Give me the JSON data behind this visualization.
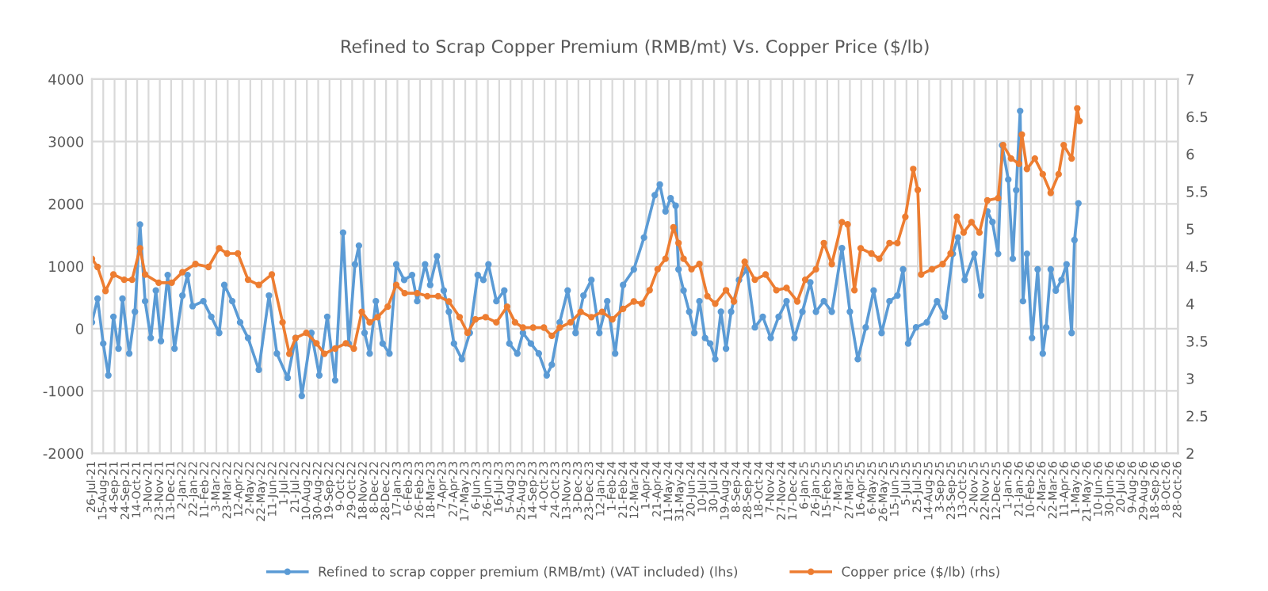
{
  "chart_data": {
    "type": "line",
    "title": "Refined to Scrap Copper Premium (RMB/mt) Vs. Copper Price ($/lb)",
    "series": [
      {
        "name": "Refined to scrap copper premium (RMB/mt) (VAT included) (lhs)",
        "color": "#5b9bd5",
        "axis": "y",
        "x": [
          "2021-07-26",
          "2021-08-05",
          "2021-08-15",
          "2021-08-24",
          "2021-09-02",
          "2021-09-11",
          "2021-09-18",
          "2021-09-30",
          "2021-10-10",
          "2021-10-19",
          "2021-10-28",
          "2021-11-07",
          "2021-11-16",
          "2021-11-25",
          "2021-12-07",
          "2021-12-19",
          "2022-01-02",
          "2022-01-11",
          "2022-01-20",
          "2022-02-08",
          "2022-02-22",
          "2022-03-08",
          "2022-03-17",
          "2022-03-31",
          "2022-04-14",
          "2022-04-28",
          "2022-05-17",
          "2022-06-04",
          "2022-06-18",
          "2022-07-07",
          "2022-07-21",
          "2022-08-01",
          "2022-08-18",
          "2022-09-01",
          "2022-09-15",
          "2022-09-29",
          "2022-10-13",
          "2022-10-23",
          "2022-11-03",
          "2022-11-10",
          "2022-11-20",
          "2022-11-29",
          "2022-12-10",
          "2022-12-22",
          "2023-01-03",
          "2023-01-15",
          "2023-01-29",
          "2023-02-12",
          "2023-02-21",
          "2023-03-07",
          "2023-03-16",
          "2023-03-28",
          "2023-04-09",
          "2023-04-18",
          "2023-04-27",
          "2023-05-11",
          "2023-05-25",
          "2023-06-08",
          "2023-06-18",
          "2023-06-27",
          "2023-07-11",
          "2023-07-25",
          "2023-08-03",
          "2023-08-17",
          "2023-08-27",
          "2023-09-10",
          "2023-09-24",
          "2023-10-08",
          "2023-10-17",
          "2023-10-31",
          "2023-11-14",
          "2023-11-28",
          "2023-12-12",
          "2023-12-26",
          "2024-01-09",
          "2024-01-23",
          "2024-02-06",
          "2024-02-20",
          "2024-03-10",
          "2024-03-28",
          "2024-04-16",
          "2024-04-25",
          "2024-05-05",
          "2024-05-14",
          "2024-05-23",
          "2024-05-28",
          "2024-06-06",
          "2024-06-16",
          "2024-06-25",
          "2024-07-04",
          "2024-07-14",
          "2024-07-23",
          "2024-08-01",
          "2024-08-11",
          "2024-08-20",
          "2024-08-29",
          "2024-09-12",
          "2024-09-26",
          "2024-10-10",
          "2024-10-24",
          "2024-11-07",
          "2024-11-21",
          "2024-12-05",
          "2024-12-19",
          "2025-01-02",
          "2025-01-16",
          "2025-01-26",
          "2025-02-09",
          "2025-02-23",
          "2025-03-13",
          "2025-03-27",
          "2025-04-10",
          "2025-04-24",
          "2025-05-08",
          "2025-05-22",
          "2025-06-05",
          "2025-06-19",
          "2025-06-29",
          "2025-07-08",
          "2025-07-22",
          "2025-08-10",
          "2025-08-28",
          "2025-09-11",
          "2025-09-25",
          "2025-10-04",
          "2025-10-16",
          "2025-11-02",
          "2025-11-14",
          "2025-11-25",
          "2025-12-04",
          "2025-12-14",
          "2025-12-21",
          "2026-01-01",
          "2026-01-09",
          "2026-01-15",
          "2026-01-22",
          "2026-01-27",
          "2026-02-03",
          "2026-02-12",
          "2026-02-22",
          "2026-03-03",
          "2026-03-09",
          "2026-03-17",
          "2026-03-26",
          "2026-04-05",
          "2026-04-14",
          "2026-04-23",
          "2026-04-28",
          "2026-05-05"
        ],
        "values": [
          100,
          480,
          -240,
          -750,
          190,
          -320,
          480,
          -400,
          270,
          1670,
          440,
          -150,
          610,
          -200,
          860,
          -320,
          530,
          860,
          360,
          440,
          190,
          -70,
          700,
          440,
          100,
          -150,
          -660,
          530,
          -400,
          -790,
          -150,
          -1080,
          -70,
          -750,
          190,
          -830,
          1540,
          -240,
          1030,
          1330,
          -70,
          -400,
          440,
          -240,
          -400,
          1030,
          780,
          860,
          440,
          1030,
          700,
          1160,
          610,
          270,
          -240,
          -490,
          -70,
          860,
          780,
          1030,
          440,
          610,
          -240,
          -400,
          -70,
          -240,
          -400,
          -750,
          -580,
          100,
          610,
          -70,
          530,
          780,
          -70,
          440,
          -400,
          700,
          950,
          1460,
          2140,
          2310,
          1880,
          2090,
          1970,
          950,
          610,
          270,
          -70,
          440,
          -150,
          -240,
          -490,
          270,
          -320,
          270,
          780,
          950,
          20,
          190,
          -150,
          190,
          440,
          -150,
          270,
          740,
          270,
          440,
          270,
          1290,
          270,
          -490,
          20,
          610,
          -70,
          440,
          530,
          950,
          -240,
          20,
          100,
          440,
          190,
          1200,
          1460,
          780,
          1200,
          530,
          1880,
          1710,
          1200,
          2940,
          2390,
          1120,
          2220,
          3490,
          440,
          1200,
          -150,
          950,
          -400,
          20,
          950,
          610,
          780,
          1030,
          -70,
          1420,
          2010
        ]
      },
      {
        "name": "Copper price ($/lb) (rhs)",
        "color": "#ed7d31",
        "axis": "y2",
        "x": [
          "2021-07-26",
          "2021-08-05",
          "2021-08-19",
          "2021-09-02",
          "2021-09-21",
          "2021-10-05",
          "2021-10-19",
          "2021-10-28",
          "2021-11-21",
          "2021-12-14",
          "2022-01-02",
          "2022-01-25",
          "2022-02-17",
          "2022-03-08",
          "2022-03-22",
          "2022-04-10",
          "2022-04-28",
          "2022-05-17",
          "2022-06-09",
          "2022-06-28",
          "2022-07-10",
          "2022-07-21",
          "2022-08-09",
          "2022-08-27",
          "2022-09-10",
          "2022-09-29",
          "2022-10-18",
          "2022-11-01",
          "2022-11-15",
          "2022-11-29",
          "2022-12-13",
          "2022-12-31",
          "2023-01-15",
          "2023-01-30",
          "2023-02-21",
          "2023-03-11",
          "2023-03-30",
          "2023-04-18",
          "2023-05-07",
          "2023-05-21",
          "2023-06-04",
          "2023-06-22",
          "2023-07-11",
          "2023-07-30",
          "2023-08-13",
          "2023-08-27",
          "2023-09-14",
          "2023-10-03",
          "2023-10-17",
          "2023-10-31",
          "2023-11-19",
          "2023-12-07",
          "2023-12-26",
          "2024-01-14",
          "2024-02-01",
          "2024-02-20",
          "2024-03-10",
          "2024-03-24",
          "2024-04-07",
          "2024-04-21",
          "2024-05-05",
          "2024-05-19",
          "2024-05-28",
          "2024-06-06",
          "2024-06-20",
          "2024-07-04",
          "2024-07-18",
          "2024-08-01",
          "2024-08-20",
          "2024-09-03",
          "2024-09-22",
          "2024-10-10",
          "2024-10-29",
          "2024-11-17",
          "2024-12-05",
          "2024-12-24",
          "2025-01-07",
          "2025-01-26",
          "2025-02-09",
          "2025-02-23",
          "2025-03-13",
          "2025-03-23",
          "2025-04-04",
          "2025-04-15",
          "2025-05-04",
          "2025-05-18",
          "2025-06-05",
          "2025-06-19",
          "2025-07-03",
          "2025-07-17",
          "2025-07-25",
          "2025-07-31",
          "2025-08-19",
          "2025-09-07",
          "2025-09-21",
          "2025-10-02",
          "2025-10-14",
          "2025-10-28",
          "2025-11-11",
          "2025-11-25",
          "2025-12-14",
          "2025-12-23",
          "2026-01-06",
          "2026-01-20",
          "2026-01-25",
          "2026-02-03",
          "2026-02-17",
          "2026-03-03",
          "2026-03-17",
          "2026-03-31",
          "2026-04-09",
          "2026-04-23",
          "2026-05-03",
          "2026-05-07"
        ],
        "values": [
          4.6,
          4.49,
          4.17,
          4.39,
          4.32,
          4.32,
          4.74,
          4.39,
          4.28,
          4.28,
          4.42,
          4.53,
          4.49,
          4.74,
          4.67,
          4.67,
          4.32,
          4.25,
          4.39,
          3.75,
          3.33,
          3.54,
          3.61,
          3.47,
          3.33,
          3.4,
          3.47,
          3.4,
          3.89,
          3.75,
          3.82,
          3.96,
          4.25,
          4.14,
          4.14,
          4.1,
          4.1,
          4.03,
          3.82,
          3.61,
          3.79,
          3.82,
          3.75,
          3.96,
          3.75,
          3.68,
          3.68,
          3.68,
          3.57,
          3.68,
          3.75,
          3.89,
          3.82,
          3.89,
          3.79,
          3.93,
          4.03,
          4.0,
          4.18,
          4.46,
          4.6,
          5.02,
          4.81,
          4.6,
          4.46,
          4.53,
          4.1,
          4.0,
          4.18,
          4.03,
          4.56,
          4.32,
          4.39,
          4.18,
          4.21,
          4.03,
          4.32,
          4.46,
          4.81,
          4.53,
          5.09,
          5.06,
          4.18,
          4.74,
          4.67,
          4.6,
          4.81,
          4.81,
          5.16,
          5.8,
          5.52,
          4.39,
          4.46,
          4.53,
          4.67,
          5.16,
          4.95,
          5.09,
          4.95,
          5.38,
          5.41,
          6.12,
          5.94,
          5.87,
          6.26,
          5.8,
          5.94,
          5.73,
          5.48,
          5.73,
          6.12,
          5.94,
          6.61,
          6.44
        ]
      }
    ],
    "xlim": [
      "2021-07-26",
      "2026-10-28"
    ],
    "xticks": [
      {
        "value": "2021-07-26",
        "label": "26-Jul-21"
      },
      {
        "value": "2021-08-15",
        "label": "15-Aug-21"
      },
      {
        "value": "2021-09-04",
        "label": "4-Sep-21"
      },
      {
        "value": "2021-09-24",
        "label": "24-Sep-21"
      },
      {
        "value": "2021-10-14",
        "label": "14-Oct-21"
      },
      {
        "value": "2021-11-03",
        "label": "3-Nov-21"
      },
      {
        "value": "2021-11-23",
        "label": "23-Nov-21"
      },
      {
        "value": "2021-12-13",
        "label": "13-Dec-21"
      },
      {
        "value": "2022-01-02",
        "label": "2-Jan-22"
      },
      {
        "value": "2022-01-22",
        "label": "22-Jan-22"
      },
      {
        "value": "2022-02-11",
        "label": "11-Feb-22"
      },
      {
        "value": "2022-03-03",
        "label": "3-Mar-22"
      },
      {
        "value": "2022-03-23",
        "label": "23-Mar-22"
      },
      {
        "value": "2022-04-12",
        "label": "12-Apr-22"
      },
      {
        "value": "2022-05-02",
        "label": "2-May-22"
      },
      {
        "value": "2022-05-22",
        "label": "22-May-22"
      },
      {
        "value": "2022-06-11",
        "label": "11-Jun-22"
      },
      {
        "value": "2022-07-01",
        "label": "1-Jul-22"
      },
      {
        "value": "2022-07-21",
        "label": "21-Jul-22"
      },
      {
        "value": "2022-08-10",
        "label": "10-Aug-22"
      },
      {
        "value": "2022-08-30",
        "label": "30-Aug-22"
      },
      {
        "value": "2022-09-19",
        "label": "19-Sep-22"
      },
      {
        "value": "2022-10-09",
        "label": "9-Oct-22"
      },
      {
        "value": "2022-10-29",
        "label": "29-Oct-22"
      },
      {
        "value": "2022-11-18",
        "label": "18-Nov-22"
      },
      {
        "value": "2022-12-08",
        "label": "8-Dec-22"
      },
      {
        "value": "2022-12-28",
        "label": "28-Dec-22"
      },
      {
        "value": "2023-01-17",
        "label": "17-Jan-23"
      },
      {
        "value": "2023-02-06",
        "label": "6-Feb-23"
      },
      {
        "value": "2023-02-26",
        "label": "26-Feb-23"
      },
      {
        "value": "2023-03-18",
        "label": "18-Mar-23"
      },
      {
        "value": "2023-04-07",
        "label": "7-Apr-23"
      },
      {
        "value": "2023-04-27",
        "label": "27-Apr-23"
      },
      {
        "value": "2023-05-17",
        "label": "17-May-23"
      },
      {
        "value": "2023-06-06",
        "label": "6-Jun-23"
      },
      {
        "value": "2023-06-26",
        "label": "26-Jun-23"
      },
      {
        "value": "2023-07-16",
        "label": "16-Jul-23"
      },
      {
        "value": "2023-08-05",
        "label": "5-Aug-23"
      },
      {
        "value": "2023-08-25",
        "label": "25-Aug-23"
      },
      {
        "value": "2023-09-14",
        "label": "14-Sep-23"
      },
      {
        "value": "2023-10-04",
        "label": "4-Oct-23"
      },
      {
        "value": "2023-10-24",
        "label": "24-Oct-23"
      },
      {
        "value": "2023-11-13",
        "label": "13-Nov-23"
      },
      {
        "value": "2023-12-03",
        "label": "3-Dec-23"
      },
      {
        "value": "2023-12-23",
        "label": "23-Dec-23"
      },
      {
        "value": "2024-01-12",
        "label": "12-Jan-24"
      },
      {
        "value": "2024-02-01",
        "label": "1-Feb-24"
      },
      {
        "value": "2024-02-21",
        "label": "21-Feb-24"
      },
      {
        "value": "2024-03-12",
        "label": "12-Mar-24"
      },
      {
        "value": "2024-04-01",
        "label": "1-Apr-24"
      },
      {
        "value": "2024-04-21",
        "label": "21-Apr-24"
      },
      {
        "value": "2024-05-11",
        "label": "11-May-24"
      },
      {
        "value": "2024-05-31",
        "label": "31-May-24"
      },
      {
        "value": "2024-06-20",
        "label": "20-Jun-24"
      },
      {
        "value": "2024-07-10",
        "label": "10-Jul-24"
      },
      {
        "value": "2024-07-30",
        "label": "30-Jul-24"
      },
      {
        "value": "2024-08-19",
        "label": "19-Aug-24"
      },
      {
        "value": "2024-09-08",
        "label": "8-Sep-24"
      },
      {
        "value": "2024-09-28",
        "label": "28-Sep-24"
      },
      {
        "value": "2024-10-18",
        "label": "18-Oct-24"
      },
      {
        "value": "2024-11-07",
        "label": "7-Nov-24"
      },
      {
        "value": "2024-11-27",
        "label": "27-Nov-24"
      },
      {
        "value": "2024-12-17",
        "label": "17-Dec-24"
      },
      {
        "value": "2025-01-06",
        "label": "6-Jan-25"
      },
      {
        "value": "2025-01-26",
        "label": "26-Jan-25"
      },
      {
        "value": "2025-02-15",
        "label": "15-Feb-25"
      },
      {
        "value": "2025-03-07",
        "label": "7-Mar-25"
      },
      {
        "value": "2025-03-27",
        "label": "27-Mar-25"
      },
      {
        "value": "2025-04-16",
        "label": "16-Apr-25"
      },
      {
        "value": "2025-05-06",
        "label": "6-May-25"
      },
      {
        "value": "2025-05-26",
        "label": "26-May-25"
      },
      {
        "value": "2025-06-15",
        "label": "15-Jun-25"
      },
      {
        "value": "2025-07-05",
        "label": "5-Jul-25"
      },
      {
        "value": "2025-07-25",
        "label": "25-Jul-25"
      },
      {
        "value": "2025-08-14",
        "label": "14-Aug-25"
      },
      {
        "value": "2025-09-03",
        "label": "3-Sep-25"
      },
      {
        "value": "2025-09-23",
        "label": "23-Sep-25"
      },
      {
        "value": "2025-10-13",
        "label": "13-Oct-25"
      },
      {
        "value": "2025-11-02",
        "label": "2-Nov-25"
      },
      {
        "value": "2025-11-22",
        "label": "22-Nov-25"
      },
      {
        "value": "2025-12-12",
        "label": "12-Dec-25"
      },
      {
        "value": "2026-01-01",
        "label": "1-Jan-26"
      },
      {
        "value": "2026-01-21",
        "label": "21-Jan-26"
      },
      {
        "value": "2026-02-10",
        "label": "10-Feb-26"
      },
      {
        "value": "2026-03-02",
        "label": "2-Mar-26"
      },
      {
        "value": "2026-03-22",
        "label": "22-Mar-26"
      },
      {
        "value": "2026-04-11",
        "label": "11-Apr-26"
      },
      {
        "value": "2026-05-01",
        "label": "1-May-26"
      },
      {
        "value": "2026-05-21",
        "label": "21-May-26"
      },
      {
        "value": "2026-06-10",
        "label": "10-Jun-26"
      },
      {
        "value": "2026-06-30",
        "label": "30-Jun-26"
      },
      {
        "value": "2026-07-20",
        "label": "20-Jul-26"
      },
      {
        "value": "2026-08-09",
        "label": "9-Aug-26"
      },
      {
        "value": "2026-08-29",
        "label": "29-Aug-26"
      },
      {
        "value": "2026-09-18",
        "label": "18-Sep-26"
      },
      {
        "value": "2026-10-08",
        "label": "8-Oct-26"
      },
      {
        "value": "2026-10-28",
        "label": "28-Oct-26"
      }
    ],
    "ylim": [
      -2000,
      4000
    ],
    "yticks": [
      -2000,
      -1000,
      0,
      1000,
      2000,
      3000,
      4000
    ],
    "y2lim": [
      2,
      7
    ],
    "y2ticks": [
      2,
      2.5,
      3,
      3.5,
      4,
      4.5,
      5,
      5.5,
      6,
      6.5,
      7
    ],
    "grid": true,
    "legend": "bottom",
    "marker": "circle",
    "line_style": "solid"
  }
}
